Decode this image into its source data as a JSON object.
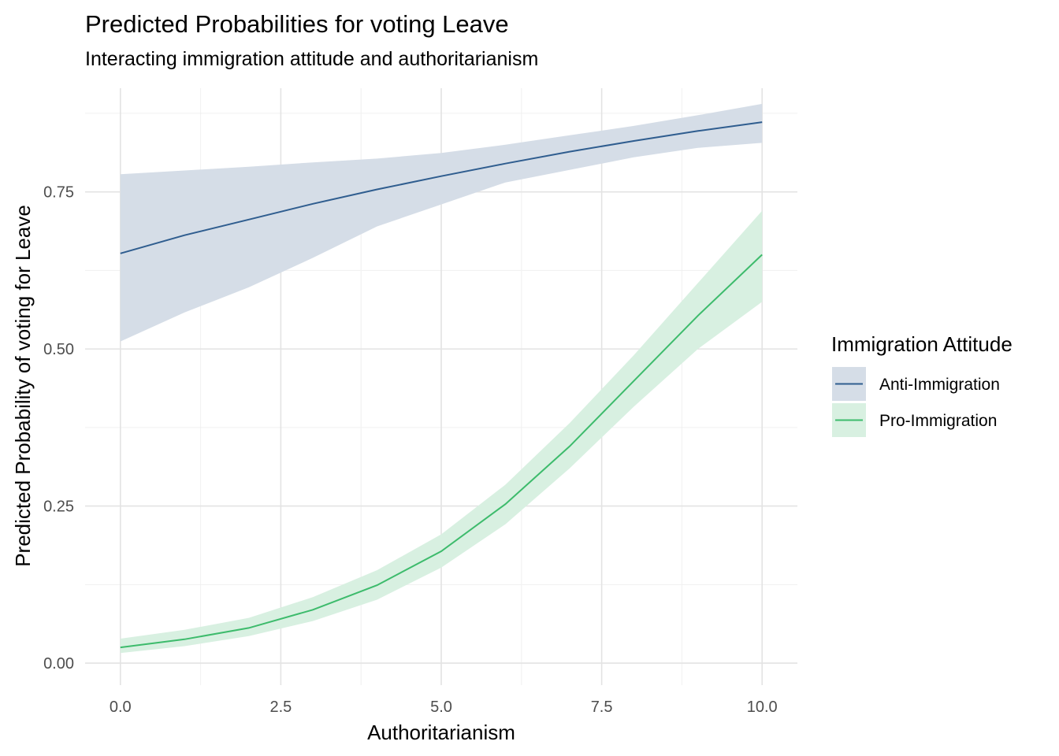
{
  "chart_data": {
    "type": "line",
    "title": "Predicted Probabilities for voting Leave",
    "subtitle": "Interacting immigration attitude and authoritarianism",
    "xlabel": "Authoritarianism",
    "ylabel": "Predicted Probability of voting for Leave",
    "xlim": [
      -0.55,
      10.55
    ],
    "ylim": [
      -0.035,
      0.915
    ],
    "x_ticks": [
      0,
      2.5,
      5,
      7.5,
      10
    ],
    "x_tick_labels": [
      "0.0",
      "2.5",
      "5.0",
      "7.5",
      "10.0"
    ],
    "y_ticks": [
      0,
      0.25,
      0.5,
      0.75
    ],
    "y_tick_labels": [
      "0.00",
      "0.25",
      "0.50",
      "0.75"
    ],
    "grid": true,
    "legend": {
      "title": "Immigration Attitude",
      "position": "right"
    },
    "series": [
      {
        "name": "Anti-Immigration",
        "color": "#2f5d8f",
        "fill": "#d5dde7",
        "x": [
          0,
          1,
          2,
          3,
          4,
          5,
          6,
          7,
          8,
          9,
          10
        ],
        "y": [
          0.652,
          0.681,
          0.706,
          0.731,
          0.754,
          0.775,
          0.795,
          0.814,
          0.831,
          0.847,
          0.861
        ],
        "lower": [
          0.512,
          0.558,
          0.598,
          0.645,
          0.695,
          0.73,
          0.765,
          0.785,
          0.805,
          0.82,
          0.828
        ],
        "upper": [
          0.778,
          0.784,
          0.79,
          0.797,
          0.803,
          0.812,
          0.825,
          0.84,
          0.855,
          0.872,
          0.89
        ]
      },
      {
        "name": "Pro-Immigration",
        "color": "#3dbb6c",
        "fill": "#d8f0e1",
        "x": [
          0,
          1,
          2,
          3,
          4,
          5,
          6,
          7,
          8,
          9,
          10
        ],
        "y": [
          0.025,
          0.038,
          0.056,
          0.085,
          0.124,
          0.178,
          0.253,
          0.345,
          0.449,
          0.553,
          0.65
        ],
        "lower": [
          0.016,
          0.027,
          0.043,
          0.067,
          0.101,
          0.152,
          0.221,
          0.31,
          0.408,
          0.5,
          0.575
        ],
        "upper": [
          0.039,
          0.053,
          0.072,
          0.105,
          0.148,
          0.205,
          0.284,
          0.382,
          0.49,
          0.605,
          0.72
        ]
      }
    ]
  }
}
